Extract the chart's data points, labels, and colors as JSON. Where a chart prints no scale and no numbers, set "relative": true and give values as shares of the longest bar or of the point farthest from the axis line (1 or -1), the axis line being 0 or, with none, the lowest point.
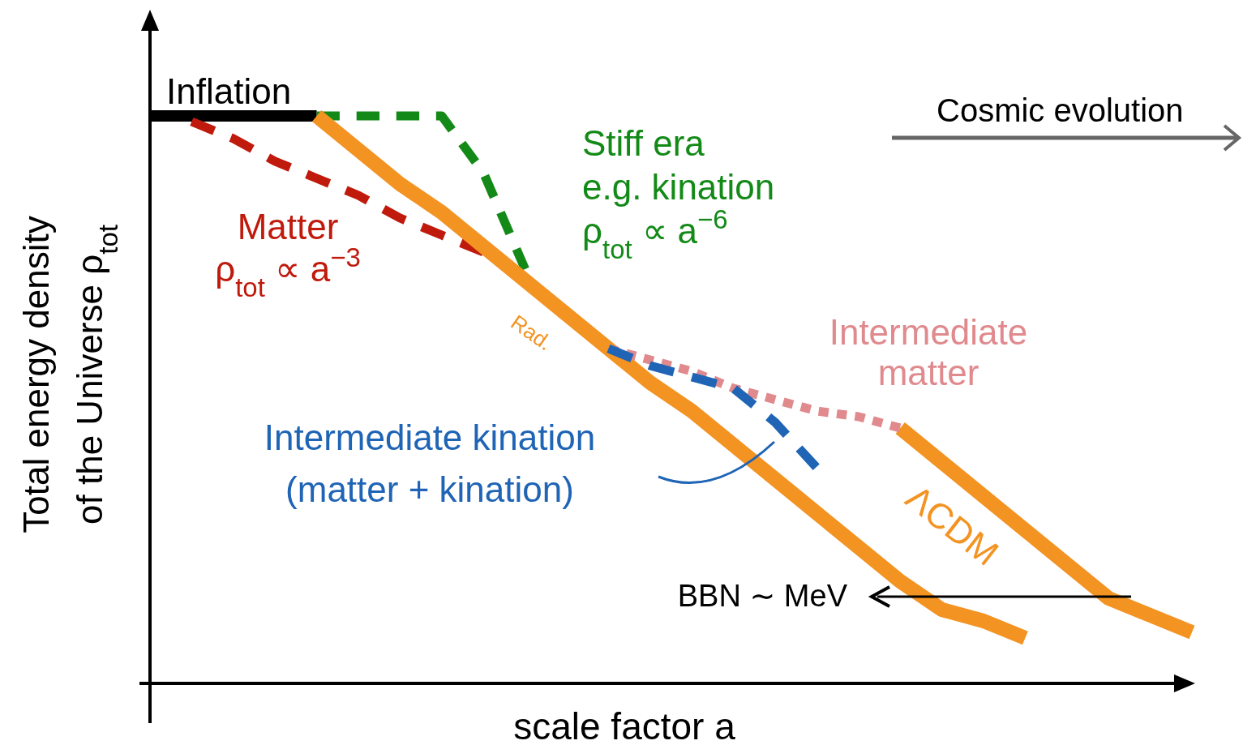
{
  "chart_data": {
    "type": "line",
    "relative": true,
    "xlabel": "scale factor a",
    "ylabel": "Total energy density\nof the Universe ρ$_{tot}$",
    "categories": [
      null,
      null,
      null,
      null,
      null,
      null,
      null,
      null,
      null,
      null,
      null,
      null,
      null,
      null,
      null,
      null,
      null,
      null,
      null,
      null,
      null,
      null,
      null,
      null,
      null,
      null
    ],
    "series": [
      {
        "name": "Inflation",
        "color": "#000000",
        "line_style": "solid",
        "values": [
          1,
          1,
          1,
          1,
          1,
          null,
          null,
          null,
          null,
          null,
          null,
          null,
          null,
          null,
          null,
          null,
          null,
          null,
          null,
          null,
          null,
          null,
          null,
          null,
          null,
          null
        ]
      },
      {
        "name": "Matter\nρ$_{tot}$ ∝ a$^{−3}$",
        "color": "#bf1a0c",
        "line_style": "dashed",
        "values": [
          null,
          0.99,
          0.96,
          0.92,
          0.89,
          0.86,
          0.82,
          0.79,
          0.76,
          null,
          null,
          null,
          null,
          null,
          null,
          null,
          null,
          null,
          null,
          null,
          null,
          null,
          null,
          null,
          null,
          null
        ]
      },
      {
        "name": "Stiff era\ne.g. kination\nρ$_{tot}$ ∝ a$^{−6}$",
        "color": "#138a17",
        "line_style": "dashed",
        "values": [
          null,
          null,
          null,
          null,
          1,
          1,
          1,
          1,
          0.9,
          0.73,
          null,
          null,
          null,
          null,
          null,
          null,
          null,
          null,
          null,
          null,
          null,
          null,
          null,
          null,
          null,
          null
        ]
      },
      {
        "name": "ΛCDM",
        "color": "#f39322",
        "line_style": "solid",
        "values": [
          null,
          null,
          null,
          null,
          1,
          0.94,
          0.88,
          0.83,
          0.77,
          0.71,
          0.65,
          0.59,
          0.53,
          0.48,
          0.42,
          0.36,
          0.3,
          0.24,
          0.18,
          0.13,
          0.11,
          0.08,
          null,
          null,
          null,
          null
        ]
      },
      {
        "color": "#f39322",
        "line_style": "solid",
        "values": [
          null,
          null,
          null,
          null,
          null,
          null,
          null,
          null,
          null,
          null,
          null,
          null,
          null,
          null,
          null,
          null,
          null,
          null,
          0.45,
          0.39,
          0.33,
          0.27,
          0.21,
          0.15,
          0.12,
          0.09
        ]
      },
      {
        "name": "Intermediate\nmatter",
        "color": "#e08a8e",
        "line_style": "dotted",
        "values": [
          null,
          null,
          null,
          null,
          null,
          null,
          null,
          null,
          null,
          null,
          null,
          0.59,
          0.57,
          0.55,
          0.52,
          0.5,
          0.48,
          0.47,
          0.45,
          null,
          null,
          null,
          null,
          null,
          null,
          null
        ]
      },
      {
        "name": "Intermediate kination\n(matter + kination)",
        "color": "#1f64b5",
        "line_style": "dashed",
        "values": [
          null,
          null,
          null,
          null,
          null,
          null,
          null,
          null,
          null,
          null,
          null,
          0.59,
          0.56,
          0.54,
          0.52,
          0.46,
          0.38,
          null,
          null,
          null,
          null,
          null,
          null,
          null,
          null,
          null
        ]
      }
    ],
    "annotations": [
      "Rad.",
      "BBN ∼ MeV",
      "Cosmic evolution"
    ]
  }
}
